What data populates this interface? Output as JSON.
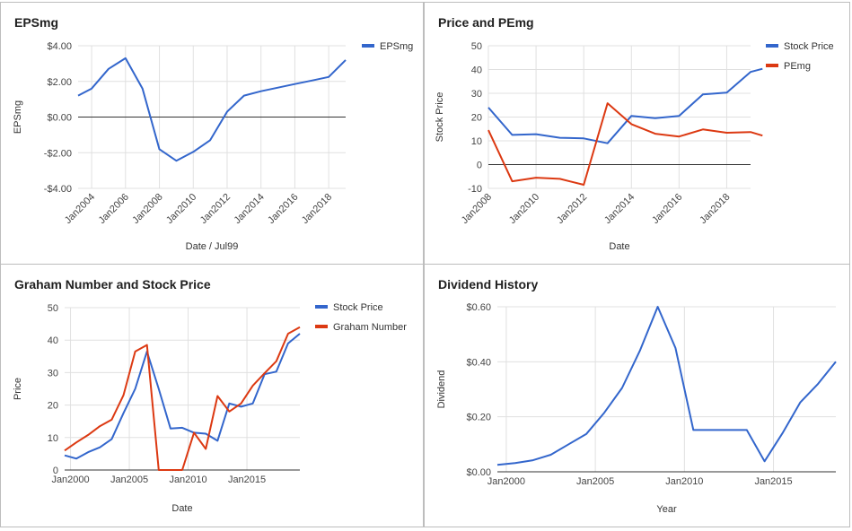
{
  "chart_data": [
    {
      "type": "line",
      "title": "EPSmg",
      "xlabel": "Date / Jul99",
      "ylabel": "EPSmg",
      "ylim": [
        -4,
        4
      ],
      "yticks": [
        4,
        2,
        0,
        -2,
        -4
      ],
      "ytick_labels": [
        "$4.00",
        "$2.00",
        "$0.00",
        "-$2.00",
        "-$4.00"
      ],
      "xlim": [
        2003.2,
        2019.0
      ],
      "xticks": [
        2004,
        2006,
        2008,
        2010,
        2012,
        2014,
        2016,
        2018
      ],
      "xtick_labels": [
        "Jan2004",
        "Jan2006",
        "Jan2008",
        "Jan2010",
        "Jan2012",
        "Jan2014",
        "Jan2016",
        "Jan2018"
      ],
      "x_rotated_labels": true,
      "zero_line": true,
      "legend_position": "top-right",
      "series": [
        {
          "name": "EPSmg",
          "color": "#3366cc",
          "x": [
            2003.2,
            2004.0,
            2005.0,
            2006.0,
            2007.0,
            2008.0,
            2009.0,
            2010.0,
            2011.0,
            2012.0,
            2013.0,
            2014.0,
            2015.0,
            2016.0,
            2017.0,
            2018.0,
            2019.0
          ],
          "y": [
            1.2,
            1.6,
            2.7,
            3.3,
            1.6,
            -1.8,
            -2.45,
            -1.95,
            -1.3,
            0.3,
            1.2,
            1.45,
            1.65,
            1.85,
            2.05,
            2.25,
            3.2
          ]
        }
      ]
    },
    {
      "type": "line",
      "title": "Price and PEmg",
      "xlabel": "Date",
      "ylabel": "Stock Price",
      "ylim": [
        -10,
        50
      ],
      "yticks": [
        50,
        40,
        30,
        20,
        10,
        0,
        -10
      ],
      "ytick_labels": [
        "50",
        "40",
        "30",
        "20",
        "10",
        "0",
        "-10"
      ],
      "xlim": [
        2008.0,
        2019.0
      ],
      "xticks": [
        2008,
        2010,
        2012,
        2014,
        2016,
        2018
      ],
      "xtick_labels": [
        "Jan2008",
        "Jan2010",
        "Jan2012",
        "Jan2014",
        "Jan2016",
        "Jan2018"
      ],
      "x_rotated_labels": true,
      "zero_line": true,
      "legend_position": "top-right",
      "series": [
        {
          "name": "Stock Price",
          "color": "#3366cc",
          "x": [
            2008.0,
            2009.0,
            2010.0,
            2011.0,
            2012.0,
            2013.0,
            2014.0,
            2015.0,
            2016.0,
            2017.0,
            2018.0,
            2019.0,
            2019.5
          ],
          "y": [
            24,
            12.5,
            12.8,
            11.3,
            11.0,
            9.0,
            20.5,
            19.5,
            20.5,
            29.5,
            30.3,
            39.0,
            40.3
          ]
        },
        {
          "name": "PEmg",
          "color": "#dc3912",
          "x": [
            2008.0,
            2009.0,
            2010.0,
            2011.0,
            2012.0,
            2013.0,
            2014.0,
            2015.0,
            2016.0,
            2017.0,
            2018.0,
            2019.0,
            2019.5
          ],
          "y": [
            14.5,
            -7.0,
            -5.5,
            -6.0,
            -8.5,
            25.8,
            17.0,
            13.0,
            11.8,
            14.8,
            13.4,
            13.7,
            12.2
          ]
        }
      ]
    },
    {
      "type": "line",
      "title": "Graham Number and Stock Price",
      "xlabel": "Date",
      "ylabel": "Price",
      "ylim": [
        0,
        50
      ],
      "yticks": [
        50,
        40,
        30,
        20,
        10,
        0
      ],
      "ytick_labels": [
        "50",
        "40",
        "30",
        "20",
        "10",
        "0"
      ],
      "xlim": [
        1999.5,
        2019.5
      ],
      "xticks": [
        2000,
        2005,
        2010,
        2015
      ],
      "xtick_labels": [
        "Jan2000",
        "Jan2005",
        "Jan2010",
        "Jan2015"
      ],
      "x_rotated_labels": false,
      "legend_position": "top-right",
      "series": [
        {
          "name": "Stock Price",
          "color": "#3366cc",
          "x": [
            1999.5,
            2000.5,
            2001.5,
            2002.5,
            2003.5,
            2004.5,
            2005.5,
            2006.5,
            2007.5,
            2008.5,
            2009.5,
            2010.5,
            2011.5,
            2012.5,
            2013.5,
            2014.5,
            2015.5,
            2016.5,
            2017.5,
            2018.5,
            2019.5
          ],
          "y": [
            4.5,
            3.5,
            5.5,
            7.0,
            9.5,
            17.5,
            25.0,
            36.5,
            25.0,
            12.8,
            13.0,
            11.5,
            11.2,
            9.0,
            20.5,
            19.5,
            20.5,
            29.5,
            30.3,
            39.0,
            42.0
          ]
        },
        {
          "name": "Graham Number",
          "color": "#dc3912",
          "x": [
            1999.5,
            2000.5,
            2001.5,
            2002.5,
            2003.5,
            2004.5,
            2005.5,
            2006.5,
            2007.5,
            2008.5,
            2009.5,
            2010.5,
            2011.5,
            2012.5,
            2013.5,
            2014.5,
            2015.5,
            2016.5,
            2017.5,
            2018.5,
            2019.5
          ],
          "y": [
            6.0,
            8.5,
            10.8,
            13.5,
            15.5,
            23.0,
            36.5,
            38.5,
            0,
            0,
            0,
            11.5,
            6.5,
            22.8,
            18.0,
            20.5,
            26.0,
            29.8,
            33.5,
            42.0,
            44.0
          ]
        }
      ]
    },
    {
      "type": "line",
      "title": "Dividend History",
      "xlabel": "Year",
      "ylabel": "Dividend",
      "ylim": [
        0,
        0.6
      ],
      "yticks": [
        0.6,
        0.4,
        0.2,
        0
      ],
      "ytick_labels": [
        "$0.60",
        "$0.40",
        "$0.20",
        "$0.00"
      ],
      "xlim": [
        1999.5,
        2018.5
      ],
      "xticks": [
        2000,
        2005,
        2010,
        2015
      ],
      "xtick_labels": [
        "Jan2000",
        "Jan2005",
        "Jan2010",
        "Jan2015"
      ],
      "x_rotated_labels": false,
      "legend_position": "none",
      "series": [
        {
          "name": "",
          "color": "#3366cc",
          "x": [
            1999.5,
            2000.5,
            2001.5,
            2002.5,
            2003.5,
            2004.5,
            2005.5,
            2006.5,
            2007.5,
            2008.5,
            2009.5,
            2010.5,
            2011.5,
            2012.5,
            2013.5,
            2014.5,
            2015.5,
            2016.5,
            2017.5,
            2018.5
          ],
          "y": [
            0.025,
            0.032,
            0.042,
            0.062,
            0.1,
            0.138,
            0.215,
            0.305,
            0.44,
            0.6,
            0.45,
            0.152,
            0.152,
            0.152,
            0.152,
            0.038,
            0.14,
            0.252,
            0.32,
            0.4
          ]
        }
      ]
    }
  ]
}
